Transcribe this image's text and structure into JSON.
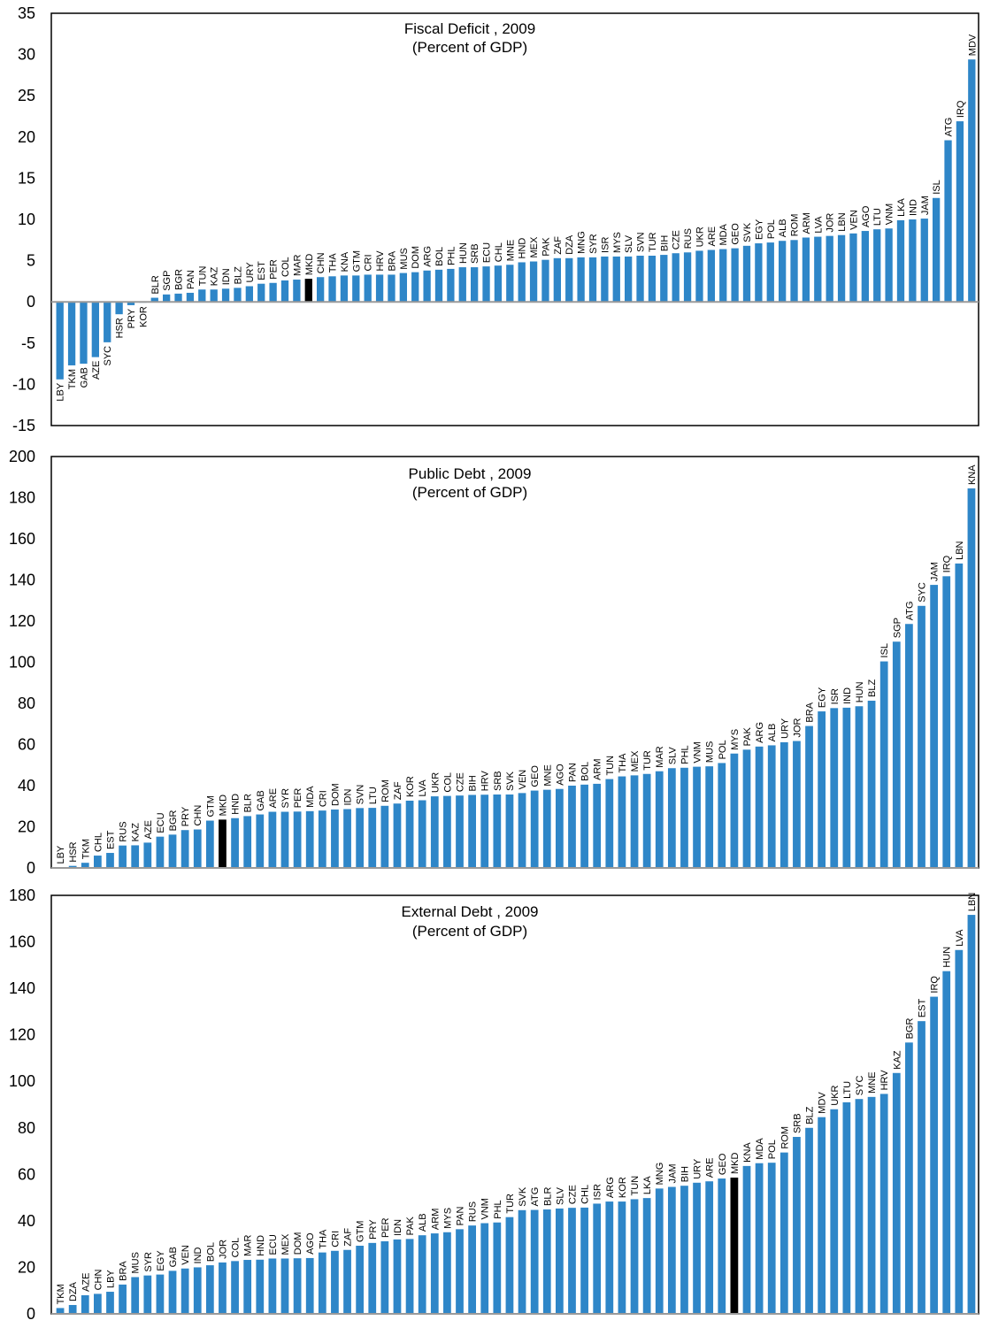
{
  "chart_data": [
    {
      "type": "bar",
      "title": "Fiscal Deficit , 2009",
      "subtitle": "(Percent of GDP)",
      "ylim": [
        -15,
        35
      ],
      "yticks": [
        -15,
        -10,
        -5,
        0,
        5,
        10,
        15,
        20,
        25,
        30,
        35
      ],
      "grid": false,
      "highlight": "MKD",
      "colors": {
        "bar": "#2e86c8",
        "highlight": "#000000"
      },
      "categories": [
        "LBY",
        "TKM",
        "GAB",
        "AZE",
        "SYC",
        "HSR",
        "PRY",
        "KOR",
        "BLR",
        "SGP",
        "BGR",
        "PAN",
        "TUN",
        "KAZ",
        "IDN",
        "BLZ",
        "URY",
        "EST",
        "PER",
        "COL",
        "MAR",
        "MKD",
        "CHN",
        "THA",
        "KNA",
        "GTM",
        "CRI",
        "HRV",
        "BRA",
        "MUS",
        "DOM",
        "ARG",
        "BOL",
        "PHL",
        "HUN",
        "SRB",
        "ECU",
        "CHL",
        "MNE",
        "HND",
        "MEX",
        "PAK",
        "ZAF",
        "DZA",
        "MNG",
        "SYR",
        "ISR",
        "MYS",
        "SLV",
        "SVN",
        "TUR",
        "BIH",
        "CZE",
        "RUS",
        "UKR",
        "ARE",
        "MDA",
        "GEO",
        "SVK",
        "EGY",
        "POL",
        "ALB",
        "ROM",
        "ARM",
        "LVA",
        "JOR",
        "LBN",
        "VEN",
        "AGO",
        "LTU",
        "VNM",
        "LKA",
        "IND",
        "JAM",
        "ISL",
        "ATG",
        "IRQ",
        "MDV"
      ],
      "values": [
        -9.4,
        -7.7,
        -7.5,
        -6.7,
        -4.9,
        -1.5,
        -0.4,
        -0.1,
        0.5,
        0.9,
        1.0,
        1.1,
        1.5,
        1.5,
        1.6,
        1.7,
        1.9,
        2.2,
        2.3,
        2.6,
        2.7,
        2.8,
        3.0,
        3.1,
        3.2,
        3.2,
        3.3,
        3.3,
        3.3,
        3.5,
        3.6,
        3.8,
        3.9,
        4.0,
        4.2,
        4.2,
        4.3,
        4.4,
        4.5,
        4.8,
        4.9,
        5.1,
        5.3,
        5.3,
        5.4,
        5.4,
        5.5,
        5.5,
        5.5,
        5.6,
        5.6,
        5.7,
        5.9,
        6.0,
        6.2,
        6.3,
        6.4,
        6.5,
        6.8,
        7.1,
        7.2,
        7.4,
        7.5,
        7.8,
        7.9,
        8.0,
        8.1,
        8.3,
        8.6,
        8.8,
        8.9,
        9.9,
        10.0,
        10.1,
        12.6,
        19.6,
        21.9,
        29.4
      ]
    },
    {
      "type": "bar",
      "title": "Public Debt , 2009",
      "subtitle": "(Percent of GDP)",
      "ylim": [
        0,
        200
      ],
      "yticks": [
        0,
        20,
        40,
        60,
        80,
        100,
        120,
        140,
        160,
        180,
        200
      ],
      "grid": false,
      "highlight": "MKD",
      "colors": {
        "bar": "#2e86c8",
        "highlight": "#000000"
      },
      "categories": [
        "LBY",
        "HSR",
        "TKM",
        "CHL",
        "EST",
        "RUS",
        "KAZ",
        "AZE",
        "ECU",
        "BGR",
        "PRY",
        "CHN",
        "GTM",
        "MKD",
        "HND",
        "BLR",
        "GAB",
        "ARE",
        "SYR",
        "PER",
        "MDA",
        "CRI",
        "DOM",
        "IDN",
        "SVN",
        "LTU",
        "ROM",
        "ZAF",
        "KOR",
        "LVA",
        "UKR",
        "COL",
        "CZE",
        "BIH",
        "HRV",
        "SRB",
        "SVK",
        "VEN",
        "GEO",
        "MNE",
        "AGO",
        "PAN",
        "BOL",
        "ARM",
        "TUN",
        "THA",
        "MEX",
        "TUR",
        "MAR",
        "SLV",
        "PHL",
        "VNM",
        "MUS",
        "POL",
        "MYS",
        "PAK",
        "ARG",
        "ALB",
        "URY",
        "JOR",
        "BRA",
        "EGY",
        "ISR",
        "IND",
        "HUN",
        "BLZ",
        "ISL",
        "SGP",
        "ATG",
        "SYC",
        "JAM",
        "IRQ",
        "LBN",
        "KNA"
      ],
      "values": [
        0.2,
        1.0,
        2.5,
        6.0,
        7.3,
        10.9,
        11.0,
        12.3,
        15.2,
        16.2,
        18.4,
        18.7,
        23.0,
        23.5,
        24.2,
        25.2,
        26.0,
        27.3,
        27.3,
        27.4,
        27.6,
        27.9,
        28.4,
        28.6,
        29.1,
        29.2,
        30.2,
        31.3,
        32.7,
        32.9,
        34.8,
        35.0,
        35.2,
        35.5,
        35.6,
        35.7,
        35.7,
        36.4,
        37.6,
        38.0,
        38.4,
        40.0,
        40.5,
        40.9,
        43.2,
        44.5,
        45.0,
        45.7,
        47.0,
        48.5,
        48.7,
        49.2,
        49.4,
        51.0,
        55.6,
        57.5,
        59.0,
        59.6,
        61.1,
        61.7,
        69.0,
        76.1,
        77.7,
        77.9,
        78.6,
        81.3,
        100.4,
        110.0,
        118.6,
        127.4,
        137.6,
        141.8,
        148.0,
        184.5
      ]
    },
    {
      "type": "bar",
      "title": "External Debt , 2009",
      "subtitle": "(Percent of GDP)",
      "ylim": [
        0,
        180
      ],
      "yticks": [
        0,
        20,
        40,
        60,
        80,
        100,
        120,
        140,
        160,
        180
      ],
      "grid": false,
      "highlight": "MKD",
      "colors": {
        "bar": "#2e86c8",
        "highlight": "#000000"
      },
      "categories": [
        "TKM",
        "DZA",
        "AZE",
        "CHN",
        "LBY",
        "BRA",
        "MUS",
        "SYR",
        "EGY",
        "GAB",
        "VEN",
        "IND",
        "BOL",
        "JOR",
        "COL",
        "MAR",
        "HND",
        "ECU",
        "MEX",
        "DOM",
        "AGO",
        "THA",
        "CRI",
        "ZAF",
        "GTM",
        "PRY",
        "PER",
        "IDN",
        "PAK",
        "ALB",
        "ARM",
        "MYS",
        "PAN",
        "RUS",
        "VNM",
        "PHL",
        "TUR",
        "SVK",
        "ATG",
        "BLR",
        "SLV",
        "CZE",
        "CHL",
        "ISR",
        "ARG",
        "KOR",
        "TUN",
        "LKA",
        "MNG",
        "JAM",
        "BIH",
        "URY",
        "ARE",
        "GEO",
        "MKD",
        "KNA",
        "MDA",
        "POL",
        "ROM",
        "SRB",
        "BLZ",
        "MDV",
        "UKR",
        "LTU",
        "SYC",
        "MNE",
        "HRV",
        "KAZ",
        "BGR",
        "EST",
        "IRQ",
        "HUN",
        "LVA",
        "LBN"
      ],
      "values": [
        2.5,
        3.8,
        8.0,
        8.6,
        9.5,
        12.6,
        15.8,
        16.5,
        16.9,
        18.5,
        19.5,
        20.0,
        20.9,
        22.1,
        22.7,
        23.2,
        23.3,
        23.8,
        23.8,
        23.9,
        24.0,
        26.4,
        27.1,
        27.5,
        29.3,
        30.5,
        31.2,
        32.0,
        32.2,
        33.8,
        34.6,
        35.1,
        36.4,
        38.0,
        39.0,
        39.3,
        41.6,
        44.6,
        44.7,
        44.9,
        45.3,
        45.6,
        45.7,
        47.4,
        48.3,
        48.3,
        49.3,
        49.8,
        53.9,
        54.6,
        55.1,
        56.4,
        57.0,
        58.2,
        58.6,
        63.6,
        64.8,
        65.0,
        69.4,
        76.1,
        80.0,
        84.6,
        88.0,
        91.0,
        92.4,
        93.3,
        94.6,
        103.6,
        116.7,
        125.9,
        136.4,
        147.4,
        156.5,
        171.6
      ]
    }
  ]
}
